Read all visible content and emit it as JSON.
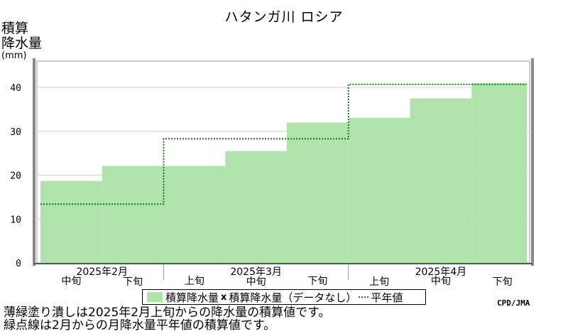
{
  "title": "ハタンガ川 ロシア",
  "ylabel_lines": [
    "積算",
    "降水量"
  ],
  "yunit": "(mm)",
  "credit": "CPD/JMA",
  "legend": {
    "bars_label": "積算降水量",
    "missing_label": "積算降水量（データなし）",
    "normal_label": "平年値"
  },
  "notes": [
    "薄緑塗り潰しは2025年2月上旬からの降水量の積算値です。",
    "緑点線は2月からの月降水量平年値の積算値です。"
  ],
  "colors": {
    "bars": "#aee3aa",
    "normal_line": "#1a7a1a",
    "grid": "#d0d0d0"
  },
  "chart_data": {
    "type": "area",
    "title": "ハタンガ川 ロシア",
    "ylabel": "積算降水量 (mm)",
    "ylim": [
      0,
      46
    ],
    "yticks": [
      0,
      10,
      20,
      30,
      40
    ],
    "grid": true,
    "legend_position": "bottom",
    "periods": [
      "中旬",
      "下旬",
      "上旬",
      "中旬",
      "下旬",
      "上旬",
      "中旬",
      "下旬"
    ],
    "months": [
      {
        "label": "2025年2月",
        "periods": [
          "中旬",
          "下旬"
        ]
      },
      {
        "label": "2025年3月",
        "periods": [
          "上旬",
          "中旬",
          "下旬"
        ]
      },
      {
        "label": "2025年4月",
        "periods": [
          "上旬",
          "中旬",
          "下旬"
        ]
      }
    ],
    "series": [
      {
        "name": "積算降水量",
        "values": [
          18.7,
          22.1,
          22.1,
          25.5,
          32.0,
          33.1,
          37.5,
          41.0
        ]
      },
      {
        "name": "平年値",
        "values": [
          13.4,
          13.4,
          28.3,
          28.3,
          28.3,
          40.7,
          40.7,
          40.7
        ]
      }
    ]
  }
}
